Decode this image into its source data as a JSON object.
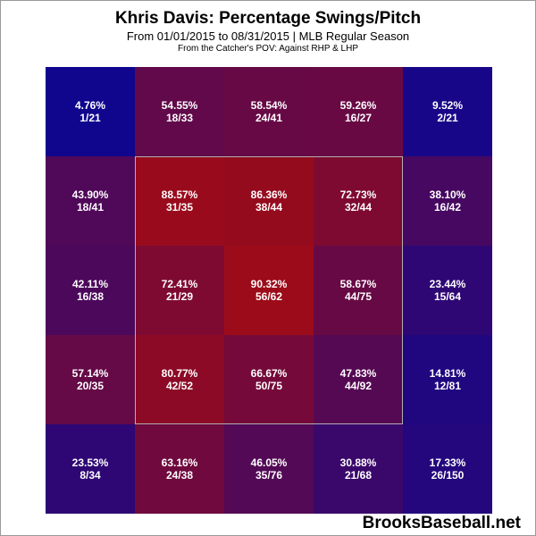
{
  "header": {
    "title": "Khris Davis: Percentage Swings/Pitch",
    "subtitle": "From 01/01/2015 to 08/31/2015 | MLB Regular Season",
    "caption": "From the Catcher's POV:  Against RHP & LHP"
  },
  "footer": {
    "brand": "BrooksBaseball.net"
  },
  "colors": {
    "low": "#0c0cd8",
    "high": "#d41616"
  },
  "chart_data": {
    "type": "heatmap",
    "title": "Khris Davis: Percentage Swings/Pitch",
    "rows": 5,
    "cols": 5,
    "strike_zone": "inner 3x3 cells (rows 2-4, columns 2-4)",
    "cells": [
      [
        {
          "pct": "4.76%",
          "frac": "1/21",
          "value": 4.76
        },
        {
          "pct": "54.55%",
          "frac": "18/33",
          "value": 54.55
        },
        {
          "pct": "58.54%",
          "frac": "24/41",
          "value": 58.54
        },
        {
          "pct": "59.26%",
          "frac": "16/27",
          "value": 59.26
        },
        {
          "pct": "9.52%",
          "frac": "2/21",
          "value": 9.52
        }
      ],
      [
        {
          "pct": "43.90%",
          "frac": "18/41",
          "value": 43.9
        },
        {
          "pct": "88.57%",
          "frac": "31/35",
          "value": 88.57
        },
        {
          "pct": "86.36%",
          "frac": "38/44",
          "value": 86.36
        },
        {
          "pct": "72.73%",
          "frac": "32/44",
          "value": 72.73
        },
        {
          "pct": "38.10%",
          "frac": "16/42",
          "value": 38.1
        }
      ],
      [
        {
          "pct": "42.11%",
          "frac": "16/38",
          "value": 42.11
        },
        {
          "pct": "72.41%",
          "frac": "21/29",
          "value": 72.41
        },
        {
          "pct": "90.32%",
          "frac": "56/62",
          "value": 90.32
        },
        {
          "pct": "58.67%",
          "frac": "44/75",
          "value": 58.67
        },
        {
          "pct": "23.44%",
          "frac": "15/64",
          "value": 23.44
        }
      ],
      [
        {
          "pct": "57.14%",
          "frac": "20/35",
          "value": 57.14
        },
        {
          "pct": "80.77%",
          "frac": "42/52",
          "value": 80.77
        },
        {
          "pct": "66.67%",
          "frac": "50/75",
          "value": 66.67
        },
        {
          "pct": "47.83%",
          "frac": "44/92",
          "value": 47.83
        },
        {
          "pct": "14.81%",
          "frac": "12/81",
          "value": 14.81
        }
      ],
      [
        {
          "pct": "23.53%",
          "frac": "8/34",
          "value": 23.53
        },
        {
          "pct": "63.16%",
          "frac": "24/38",
          "value": 63.16
        },
        {
          "pct": "46.05%",
          "frac": "35/76",
          "value": 46.05
        },
        {
          "pct": "30.88%",
          "frac": "21/68",
          "value": 30.88
        },
        {
          "pct": "17.33%",
          "frac": "26/150",
          "value": 17.33
        }
      ]
    ]
  }
}
